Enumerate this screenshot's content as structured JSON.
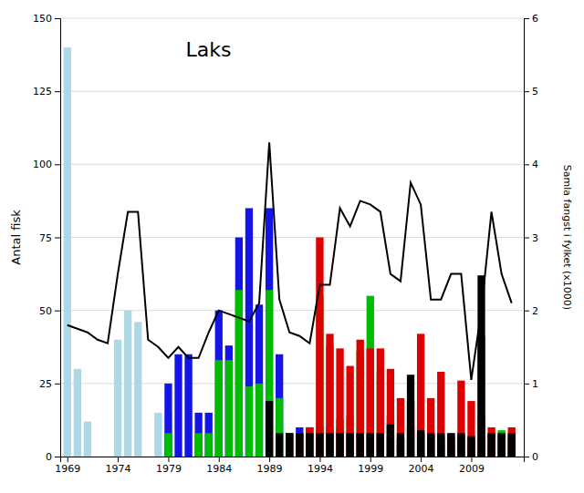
{
  "chart_data": {
    "type": "bar",
    "title": "Laks",
    "ylabel": "Antal fisk",
    "y2label": "Samla fangst i fylket (x1000)",
    "x": [
      1969,
      1970,
      1971,
      1972,
      1973,
      1974,
      1975,
      1976,
      1977,
      1978,
      1979,
      1980,
      1981,
      1982,
      1983,
      1984,
      1985,
      1986,
      1987,
      1988,
      1989,
      1990,
      1991,
      1992,
      1993,
      1994,
      1995,
      1996,
      1997,
      1998,
      1999,
      2000,
      2001,
      2002,
      2003,
      2004,
      2005,
      2006,
      2007,
      2008,
      2009,
      2010,
      2011,
      2012,
      2013
    ],
    "xlim": [
      1968.3,
      2014.2
    ],
    "xticks": [
      1969,
      1974,
      1979,
      1984,
      1989,
      1994,
      1999,
      2004,
      2009
    ],
    "ylim": [
      0,
      150
    ],
    "yticks": [
      0,
      25,
      50,
      75,
      100,
      125,
      150
    ],
    "y2lim": [
      0,
      6
    ],
    "y2ticks": [
      0,
      1,
      2,
      3,
      4,
      5,
      6
    ],
    "grid": true,
    "stacked": false,
    "series": [
      {
        "color": "#add8e6",
        "values": [
          140,
          30,
          12,
          0,
          0,
          40,
          50,
          46,
          0,
          15,
          15,
          0,
          35,
          0,
          0,
          0,
          0,
          0,
          0,
          0,
          0,
          0,
          0,
          0,
          0,
          0,
          0,
          0,
          0,
          0,
          0,
          0,
          0,
          0,
          0,
          0,
          0,
          0,
          0,
          0,
          0,
          0,
          0,
          0,
          0
        ]
      },
      {
        "color": "#1414e6",
        "values": [
          0,
          0,
          0,
          0,
          0,
          0,
          0,
          0,
          0,
          0,
          25,
          35,
          35,
          15,
          15,
          50,
          38,
          75,
          85,
          52,
          85,
          35,
          8,
          10,
          10,
          10,
          10,
          10,
          8,
          8,
          8,
          8,
          7,
          6,
          10,
          8,
          8,
          7,
          8,
          7,
          6,
          7,
          8,
          7,
          6
        ]
      },
      {
        "color": "#00bb00",
        "values": [
          0,
          0,
          0,
          0,
          0,
          0,
          0,
          0,
          0,
          0,
          8,
          0,
          0,
          8,
          8,
          33,
          33,
          57,
          24,
          25,
          57,
          20,
          8,
          8,
          8,
          55,
          38,
          13,
          14,
          36,
          55,
          29,
          14,
          6,
          6,
          8,
          6,
          5,
          5,
          4,
          3,
          14,
          5,
          9,
          8
        ]
      },
      {
        "color": "#dd0000",
        "values": [
          0,
          0,
          0,
          0,
          0,
          0,
          0,
          0,
          0,
          0,
          0,
          0,
          0,
          0,
          0,
          0,
          0,
          0,
          0,
          0,
          0,
          0,
          8,
          8,
          10,
          75,
          42,
          37,
          31,
          40,
          37,
          37,
          30,
          20,
          19,
          42,
          20,
          29,
          7,
          26,
          19,
          41,
          10,
          8,
          10
        ]
      },
      {
        "color": "#000000",
        "values": [
          0,
          0,
          0,
          0,
          0,
          0,
          0,
          0,
          0,
          0,
          0,
          0,
          0,
          0,
          0,
          0,
          0,
          0,
          0,
          0,
          19,
          8,
          8,
          8,
          8,
          8,
          8,
          8,
          8,
          8,
          8,
          8,
          11,
          8,
          28,
          9,
          8,
          8,
          8,
          8,
          7,
          62,
          8,
          8,
          8
        ]
      },
      {
        "type": "line",
        "axis": "y2",
        "color": "#000000",
        "values": [
          1.8,
          1.75,
          1.7,
          1.6,
          1.55,
          2.5,
          3.35,
          3.35,
          1.6,
          1.5,
          1.35,
          1.5,
          1.35,
          1.35,
          1.7,
          2.0,
          1.95,
          1.9,
          1.85,
          2.1,
          4.3,
          2.15,
          1.7,
          1.65,
          1.55,
          2.35,
          2.35,
          3.4,
          3.15,
          3.5,
          3.45,
          3.35,
          2.5,
          2.4,
          3.75,
          3.45,
          2.15,
          2.15,
          2.5,
          2.5,
          1.05,
          2.0,
          3.35,
          2.5,
          2.1
        ]
      }
    ]
  }
}
